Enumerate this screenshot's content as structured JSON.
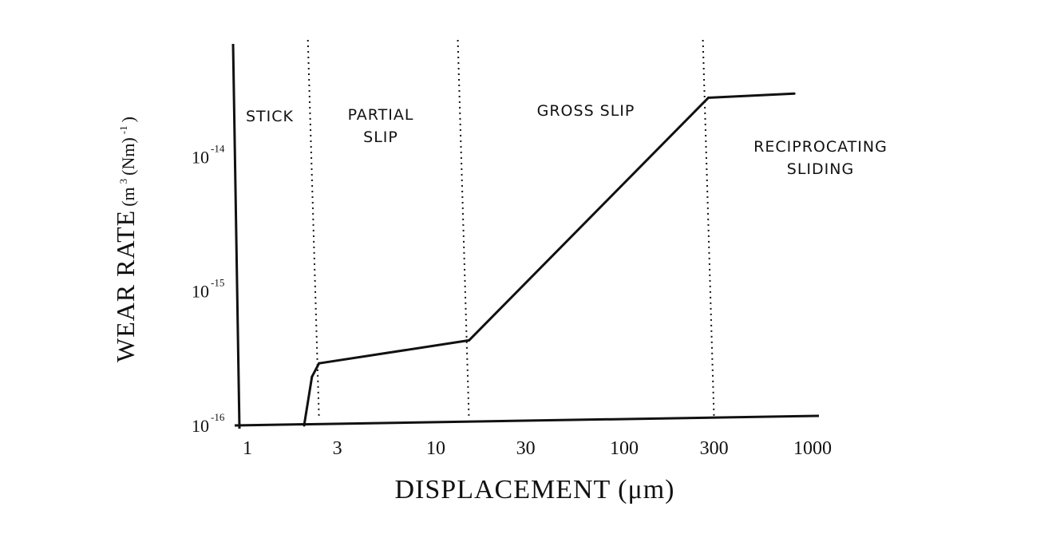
{
  "chart_data": {
    "type": "line",
    "xscale": "log",
    "yscale": "log",
    "xlim": [
      1,
      1000
    ],
    "ylim": [
      1e-16,
      4e-14
    ],
    "xlabel": "DISPLACEMENT (μm)",
    "ylabel": {
      "main": "WEAR RATE",
      "unit_open": "(m",
      "unit_sup1": "3",
      "unit_mid": "(Nm)",
      "unit_sup2": "-1",
      "unit_close": ")"
    },
    "x_ticks": [
      {
        "value": 1,
        "label": "1"
      },
      {
        "value": 3,
        "label": "3"
      },
      {
        "value": 10,
        "label": "10"
      },
      {
        "value": 30,
        "label": "30"
      },
      {
        "value": 100,
        "label": "100"
      },
      {
        "value": 300,
        "label": "300"
      },
      {
        "value": 1000,
        "label": "1000"
      }
    ],
    "y_ticks": [
      {
        "value": 1e-16,
        "mantissa": "10",
        "exponent": "-16"
      },
      {
        "value": 1e-15,
        "mantissa": "10",
        "exponent": "-15"
      },
      {
        "value": 1e-14,
        "mantissa": "10",
        "exponent": "-14"
      }
    ],
    "regions": [
      {
        "name": "STICK",
        "lines": [
          "STICK"
        ],
        "x_from": 1,
        "x_to": 2.4
      },
      {
        "name": "PARTIAL SLIP",
        "lines": [
          "PARTIAL",
          "SLIP"
        ],
        "x_from": 2.4,
        "x_to": 15
      },
      {
        "name": "GROSS SLIP",
        "lines": [
          "GROSS SLIP"
        ],
        "x_from": 15,
        "x_to": 300
      },
      {
        "name": "RECIPROCATING SLIDING",
        "lines": [
          "RECIPROCATING",
          "SLIDING"
        ],
        "x_from": 300,
        "x_to": 1000
      }
    ],
    "boundaries": [
      2.4,
      15,
      300
    ],
    "series": [
      {
        "points": [
          {
            "x": 2.0,
            "y": 1e-16
          },
          {
            "x": 2.2,
            "y": 2.3e-16
          },
          {
            "x": 2.4,
            "y": 2.9e-16
          },
          {
            "x": 15,
            "y": 4.3e-16
          },
          {
            "x": 280,
            "y": 2.75e-14
          },
          {
            "x": 800,
            "y": 2.95e-14
          }
        ]
      }
    ],
    "grid": false,
    "legend": "none"
  }
}
